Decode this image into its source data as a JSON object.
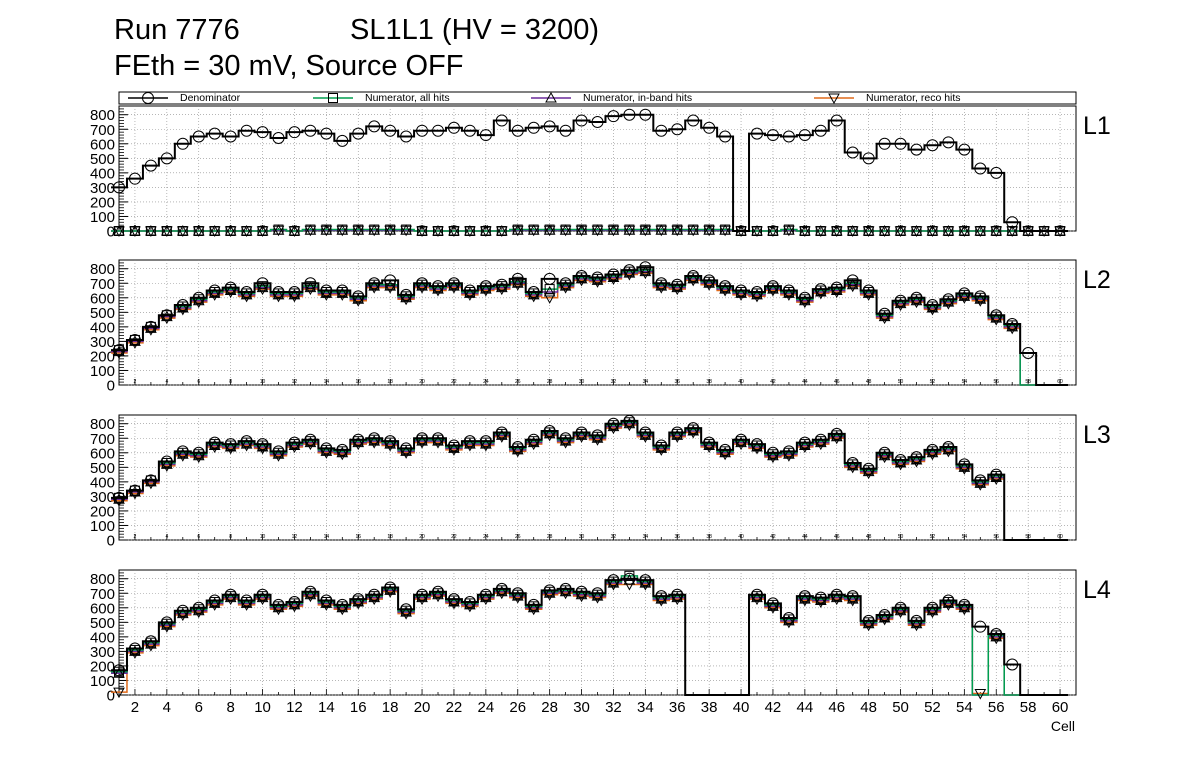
{
  "header": {
    "run": "Run 7776",
    "layer_info": "SL1L1 (HV = 3200)",
    "subtitle": "FEth = 30 mV, Source OFF"
  },
  "colors": {
    "denominator": "#000000",
    "all_hits": "#009e4f",
    "inband_hits": "#6a2a9a",
    "reco_hits": "#e06a1a",
    "grid": "#8a8a8a"
  },
  "chart_data": {
    "type": "line",
    "xlabel": "Cell",
    "xlim": [
      1,
      61
    ],
    "ylim": [
      0,
      860
    ],
    "y_ticks": [
      0,
      100,
      200,
      300,
      400,
      500,
      600,
      700,
      800
    ],
    "x_ticks": [
      2,
      4,
      6,
      8,
      10,
      12,
      14,
      16,
      18,
      20,
      22,
      24,
      26,
      28,
      30,
      32,
      34,
      36,
      38,
      40,
      42,
      44,
      46,
      48,
      50,
      52,
      54,
      56,
      58,
      60
    ],
    "x": [
      1,
      2,
      3,
      4,
      5,
      6,
      7,
      8,
      9,
      10,
      11,
      12,
      13,
      14,
      15,
      16,
      17,
      18,
      19,
      20,
      21,
      22,
      23,
      24,
      25,
      26,
      27,
      28,
      29,
      30,
      31,
      32,
      33,
      34,
      35,
      36,
      37,
      38,
      39,
      40,
      41,
      42,
      43,
      44,
      45,
      46,
      47,
      48,
      49,
      50,
      51,
      52,
      53,
      54,
      55,
      56,
      57,
      58,
      59,
      60
    ],
    "legend": [
      {
        "name": "Denominator",
        "marker": "circle"
      },
      {
        "name": "Numerator, all hits",
        "marker": "square"
      },
      {
        "name": "Numerator, in-band hits",
        "marker": "triangle-up"
      },
      {
        "name": "Numerator, reco hits",
        "marker": "triangle-down"
      }
    ],
    "panels": [
      {
        "label": "L1",
        "denominator": [
          300,
          360,
          450,
          500,
          600,
          650,
          670,
          650,
          690,
          680,
          640,
          680,
          690,
          670,
          620,
          670,
          720,
          690,
          650,
          690,
          690,
          710,
          690,
          660,
          760,
          690,
          710,
          720,
          690,
          760,
          750,
          790,
          800,
          800,
          690,
          700,
          760,
          710,
          650,
          0,
          670,
          660,
          650,
          660,
          690,
          760,
          540,
          500,
          600,
          600,
          560,
          590,
          610,
          560,
          430,
          400,
          60,
          0,
          0,
          0
        ],
        "all_hits": [
          0,
          0,
          0,
          0,
          0,
          0,
          0,
          0,
          0,
          0,
          10,
          0,
          10,
          10,
          10,
          10,
          10,
          10,
          10,
          0,
          0,
          0,
          0,
          0,
          0,
          10,
          10,
          10,
          10,
          10,
          10,
          10,
          10,
          10,
          10,
          10,
          10,
          10,
          10,
          0,
          0,
          0,
          10,
          0,
          0,
          0,
          0,
          0,
          0,
          0,
          0,
          0,
          0,
          0,
          0,
          0,
          0,
          0,
          0,
          0
        ],
        "inband_hits": [
          0,
          0,
          0,
          0,
          0,
          0,
          0,
          0,
          0,
          0,
          5,
          0,
          5,
          5,
          5,
          5,
          5,
          5,
          5,
          0,
          0,
          0,
          0,
          0,
          0,
          5,
          5,
          5,
          5,
          5,
          5,
          5,
          5,
          5,
          5,
          5,
          5,
          5,
          5,
          0,
          0,
          0,
          5,
          0,
          0,
          0,
          0,
          0,
          0,
          0,
          0,
          0,
          0,
          0,
          0,
          0,
          0,
          0,
          0,
          0
        ],
        "reco_hits": [
          0,
          0,
          0,
          0,
          0,
          0,
          0,
          0,
          0,
          0,
          5,
          0,
          5,
          5,
          5,
          5,
          5,
          5,
          5,
          0,
          0,
          0,
          0,
          0,
          0,
          5,
          5,
          5,
          5,
          5,
          5,
          5,
          5,
          5,
          5,
          5,
          5,
          5,
          5,
          0,
          0,
          0,
          5,
          0,
          0,
          0,
          0,
          0,
          0,
          0,
          0,
          0,
          0,
          0,
          0,
          0,
          0,
          0,
          0,
          0
        ]
      },
      {
        "label": "L2",
        "denominator": [
          240,
          310,
          400,
          480,
          550,
          600,
          650,
          670,
          640,
          700,
          640,
          640,
          700,
          650,
          650,
          610,
          700,
          720,
          620,
          700,
          680,
          700,
          650,
          680,
          690,
          730,
          640,
          730,
          700,
          750,
          740,
          760,
          790,
          810,
          700,
          690,
          750,
          720,
          680,
          650,
          640,
          680,
          650,
          600,
          660,
          670,
          720,
          650,
          490,
          580,
          600,
          550,
          590,
          630,
          610,
          480,
          420,
          220,
          0,
          0
        ],
        "all_hits": [
          240,
          310,
          400,
          480,
          540,
          590,
          640,
          660,
          630,
          680,
          630,
          630,
          680,
          640,
          640,
          600,
          690,
          690,
          610,
          690,
          670,
          690,
          640,
          670,
          680,
          710,
          630,
          660,
          690,
          740,
          730,
          750,
          780,
          790,
          690,
          680,
          740,
          710,
          670,
          640,
          630,
          670,
          640,
          590,
          650,
          660,
          700,
          640,
          480,
          570,
          590,
          540,
          580,
          620,
          600,
          470,
          410,
          0,
          0,
          0
        ],
        "inband_hits": [
          230,
          300,
          390,
          470,
          530,
          580,
          630,
          650,
          620,
          670,
          620,
          620,
          670,
          630,
          630,
          590,
          680,
          680,
          600,
          680,
          660,
          680,
          630,
          660,
          670,
          700,
          620,
          640,
          680,
          730,
          720,
          740,
          770,
          780,
          680,
          670,
          730,
          700,
          660,
          630,
          620,
          660,
          630,
          580,
          640,
          650,
          690,
          630,
          470,
          560,
          580,
          530,
          570,
          610,
          590,
          460,
          400,
          0,
          0,
          0
        ],
        "reco_hits": [
          220,
          290,
          380,
          460,
          520,
          570,
          620,
          640,
          610,
          660,
          610,
          610,
          660,
          620,
          620,
          580,
          670,
          670,
          590,
          670,
          650,
          670,
          620,
          650,
          660,
          690,
          610,
          600,
          670,
          720,
          710,
          730,
          760,
          770,
          670,
          660,
          720,
          690,
          650,
          620,
          610,
          650,
          620,
          570,
          630,
          640,
          680,
          620,
          460,
          550,
          570,
          520,
          560,
          600,
          580,
          450,
          390,
          0,
          0,
          0
        ]
      },
      {
        "label": "L3",
        "denominator": [
          290,
          340,
          410,
          540,
          610,
          600,
          670,
          660,
          680,
          660,
          610,
          670,
          690,
          630,
          620,
          690,
          700,
          680,
          630,
          700,
          700,
          650,
          680,
          680,
          740,
          640,
          690,
          750,
          700,
          740,
          720,
          800,
          820,
          740,
          650,
          740,
          770,
          670,
          620,
          690,
          660,
          600,
          610,
          670,
          690,
          730,
          530,
          490,
          600,
          550,
          570,
          620,
          640,
          520,
          410,
          450,
          0,
          0,
          0,
          0
        ],
        "all_hits": [
          290,
          340,
          410,
          530,
          600,
          590,
          660,
          650,
          670,
          650,
          600,
          660,
          680,
          620,
          610,
          680,
          690,
          670,
          620,
          690,
          690,
          640,
          670,
          670,
          730,
          630,
          680,
          740,
          690,
          730,
          710,
          790,
          810,
          730,
          640,
          730,
          760,
          660,
          610,
          680,
          650,
          590,
          600,
          660,
          680,
          720,
          520,
          480,
          590,
          540,
          560,
          610,
          630,
          510,
          400,
          440,
          0,
          0,
          0,
          0
        ],
        "inband_hits": [
          280,
          330,
          400,
          520,
          590,
          580,
          650,
          640,
          660,
          640,
          590,
          650,
          670,
          610,
          600,
          670,
          680,
          660,
          610,
          680,
          680,
          630,
          660,
          660,
          720,
          620,
          670,
          730,
          680,
          720,
          700,
          780,
          800,
          720,
          630,
          720,
          750,
          650,
          600,
          670,
          640,
          580,
          590,
          650,
          670,
          710,
          510,
          470,
          580,
          530,
          550,
          600,
          620,
          500,
          390,
          430,
          0,
          0,
          0,
          0
        ],
        "reco_hits": [
          270,
          320,
          390,
          510,
          580,
          570,
          640,
          630,
          650,
          630,
          580,
          640,
          660,
          600,
          590,
          660,
          670,
          650,
          600,
          670,
          670,
          620,
          650,
          650,
          710,
          610,
          660,
          720,
          670,
          710,
          690,
          770,
          790,
          710,
          620,
          710,
          740,
          640,
          590,
          660,
          630,
          570,
          580,
          640,
          660,
          700,
          500,
          460,
          570,
          520,
          540,
          590,
          610,
          490,
          380,
          420,
          0,
          0,
          0,
          0
        ]
      },
      {
        "label": "L4",
        "denominator": [
          170,
          320,
          370,
          500,
          580,
          600,
          650,
          690,
          650,
          690,
          620,
          640,
          710,
          650,
          620,
          660,
          690,
          740,
          590,
          690,
          710,
          660,
          640,
          690,
          730,
          700,
          620,
          720,
          730,
          710,
          700,
          790,
          800,
          790,
          680,
          690,
          0,
          0,
          0,
          0,
          690,
          630,
          530,
          680,
          670,
          690,
          680,
          510,
          550,
          600,
          510,
          600,
          650,
          620,
          470,
          420,
          210,
          0,
          0,
          0
        ],
        "all_hits": [
          160,
          310,
          360,
          490,
          570,
          590,
          640,
          680,
          640,
          680,
          610,
          630,
          700,
          640,
          610,
          650,
          680,
          730,
          580,
          680,
          700,
          650,
          630,
          680,
          720,
          690,
          610,
          710,
          720,
          700,
          690,
          780,
          820,
          780,
          670,
          680,
          0,
          0,
          0,
          0,
          680,
          620,
          520,
          670,
          660,
          680,
          670,
          500,
          540,
          590,
          500,
          590,
          640,
          610,
          0,
          410,
          0,
          0,
          0,
          0
        ],
        "inband_hits": [
          150,
          300,
          350,
          480,
          560,
          580,
          630,
          670,
          630,
          670,
          600,
          620,
          690,
          630,
          600,
          640,
          670,
          720,
          570,
          670,
          690,
          640,
          620,
          670,
          710,
          680,
          600,
          700,
          710,
          690,
          680,
          770,
          790,
          770,
          660,
          670,
          0,
          0,
          0,
          0,
          670,
          610,
          510,
          660,
          650,
          670,
          660,
          490,
          530,
          580,
          490,
          580,
          630,
          600,
          0,
          400,
          0,
          0,
          0,
          0
        ],
        "reco_hits": [
          20,
          290,
          340,
          470,
          550,
          570,
          620,
          660,
          620,
          660,
          590,
          610,
          680,
          620,
          590,
          630,
          660,
          710,
          560,
          660,
          680,
          630,
          610,
          660,
          700,
          670,
          590,
          690,
          700,
          680,
          670,
          760,
          760,
          760,
          650,
          660,
          0,
          0,
          0,
          0,
          660,
          600,
          500,
          650,
          640,
          660,
          650,
          480,
          520,
          570,
          480,
          570,
          620,
          590,
          10,
          390,
          0,
          0,
          0,
          0
        ]
      }
    ]
  }
}
